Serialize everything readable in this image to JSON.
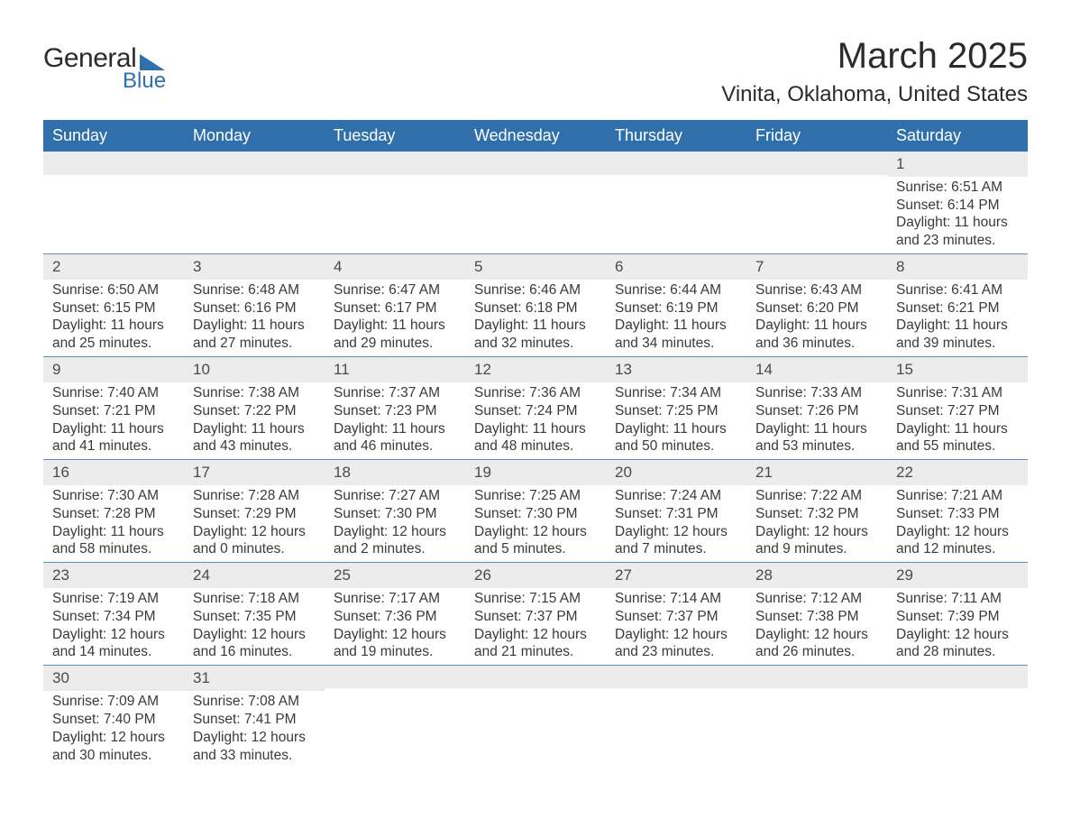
{
  "logo": {
    "text1": "General",
    "text2": "Blue"
  },
  "title": "March 2025",
  "location": "Vinita, Oklahoma, United States",
  "day_headers": [
    "Sunday",
    "Monday",
    "Tuesday",
    "Wednesday",
    "Thursday",
    "Friday",
    "Saturday"
  ],
  "colors": {
    "header_bg": "#2f6fab",
    "header_text": "#ffffff",
    "daynum_bg": "#ececec",
    "row_border": "#5b8fc4",
    "text": "#3a3a3a"
  },
  "weeks": [
    [
      {
        "n": "",
        "lines": []
      },
      {
        "n": "",
        "lines": []
      },
      {
        "n": "",
        "lines": []
      },
      {
        "n": "",
        "lines": []
      },
      {
        "n": "",
        "lines": []
      },
      {
        "n": "",
        "lines": []
      },
      {
        "n": "1",
        "lines": [
          "Sunrise: 6:51 AM",
          "Sunset: 6:14 PM",
          "Daylight: 11 hours and 23 minutes."
        ]
      }
    ],
    [
      {
        "n": "2",
        "lines": [
          "Sunrise: 6:50 AM",
          "Sunset: 6:15 PM",
          "Daylight: 11 hours and 25 minutes."
        ]
      },
      {
        "n": "3",
        "lines": [
          "Sunrise: 6:48 AM",
          "Sunset: 6:16 PM",
          "Daylight: 11 hours and 27 minutes."
        ]
      },
      {
        "n": "4",
        "lines": [
          "Sunrise: 6:47 AM",
          "Sunset: 6:17 PM",
          "Daylight: 11 hours and 29 minutes."
        ]
      },
      {
        "n": "5",
        "lines": [
          "Sunrise: 6:46 AM",
          "Sunset: 6:18 PM",
          "Daylight: 11 hours and 32 minutes."
        ]
      },
      {
        "n": "6",
        "lines": [
          "Sunrise: 6:44 AM",
          "Sunset: 6:19 PM",
          "Daylight: 11 hours and 34 minutes."
        ]
      },
      {
        "n": "7",
        "lines": [
          "Sunrise: 6:43 AM",
          "Sunset: 6:20 PM",
          "Daylight: 11 hours and 36 minutes."
        ]
      },
      {
        "n": "8",
        "lines": [
          "Sunrise: 6:41 AM",
          "Sunset: 6:21 PM",
          "Daylight: 11 hours and 39 minutes."
        ]
      }
    ],
    [
      {
        "n": "9",
        "lines": [
          "Sunrise: 7:40 AM",
          "Sunset: 7:21 PM",
          "Daylight: 11 hours and 41 minutes."
        ]
      },
      {
        "n": "10",
        "lines": [
          "Sunrise: 7:38 AM",
          "Sunset: 7:22 PM",
          "Daylight: 11 hours and 43 minutes."
        ]
      },
      {
        "n": "11",
        "lines": [
          "Sunrise: 7:37 AM",
          "Sunset: 7:23 PM",
          "Daylight: 11 hours and 46 minutes."
        ]
      },
      {
        "n": "12",
        "lines": [
          "Sunrise: 7:36 AM",
          "Sunset: 7:24 PM",
          "Daylight: 11 hours and 48 minutes."
        ]
      },
      {
        "n": "13",
        "lines": [
          "Sunrise: 7:34 AM",
          "Sunset: 7:25 PM",
          "Daylight: 11 hours and 50 minutes."
        ]
      },
      {
        "n": "14",
        "lines": [
          "Sunrise: 7:33 AM",
          "Sunset: 7:26 PM",
          "Daylight: 11 hours and 53 minutes."
        ]
      },
      {
        "n": "15",
        "lines": [
          "Sunrise: 7:31 AM",
          "Sunset: 7:27 PM",
          "Daylight: 11 hours and 55 minutes."
        ]
      }
    ],
    [
      {
        "n": "16",
        "lines": [
          "Sunrise: 7:30 AM",
          "Sunset: 7:28 PM",
          "Daylight: 11 hours and 58 minutes."
        ]
      },
      {
        "n": "17",
        "lines": [
          "Sunrise: 7:28 AM",
          "Sunset: 7:29 PM",
          "Daylight: 12 hours and 0 minutes."
        ]
      },
      {
        "n": "18",
        "lines": [
          "Sunrise: 7:27 AM",
          "Sunset: 7:30 PM",
          "Daylight: 12 hours and 2 minutes."
        ]
      },
      {
        "n": "19",
        "lines": [
          "Sunrise: 7:25 AM",
          "Sunset: 7:30 PM",
          "Daylight: 12 hours and 5 minutes."
        ]
      },
      {
        "n": "20",
        "lines": [
          "Sunrise: 7:24 AM",
          "Sunset: 7:31 PM",
          "Daylight: 12 hours and 7 minutes."
        ]
      },
      {
        "n": "21",
        "lines": [
          "Sunrise: 7:22 AM",
          "Sunset: 7:32 PM",
          "Daylight: 12 hours and 9 minutes."
        ]
      },
      {
        "n": "22",
        "lines": [
          "Sunrise: 7:21 AM",
          "Sunset: 7:33 PM",
          "Daylight: 12 hours and 12 minutes."
        ]
      }
    ],
    [
      {
        "n": "23",
        "lines": [
          "Sunrise: 7:19 AM",
          "Sunset: 7:34 PM",
          "Daylight: 12 hours and 14 minutes."
        ]
      },
      {
        "n": "24",
        "lines": [
          "Sunrise: 7:18 AM",
          "Sunset: 7:35 PM",
          "Daylight: 12 hours and 16 minutes."
        ]
      },
      {
        "n": "25",
        "lines": [
          "Sunrise: 7:17 AM",
          "Sunset: 7:36 PM",
          "Daylight: 12 hours and 19 minutes."
        ]
      },
      {
        "n": "26",
        "lines": [
          "Sunrise: 7:15 AM",
          "Sunset: 7:37 PM",
          "Daylight: 12 hours and 21 minutes."
        ]
      },
      {
        "n": "27",
        "lines": [
          "Sunrise: 7:14 AM",
          "Sunset: 7:37 PM",
          "Daylight: 12 hours and 23 minutes."
        ]
      },
      {
        "n": "28",
        "lines": [
          "Sunrise: 7:12 AM",
          "Sunset: 7:38 PM",
          "Daylight: 12 hours and 26 minutes."
        ]
      },
      {
        "n": "29",
        "lines": [
          "Sunrise: 7:11 AM",
          "Sunset: 7:39 PM",
          "Daylight: 12 hours and 28 minutes."
        ]
      }
    ],
    [
      {
        "n": "30",
        "lines": [
          "Sunrise: 7:09 AM",
          "Sunset: 7:40 PM",
          "Daylight: 12 hours and 30 minutes."
        ]
      },
      {
        "n": "31",
        "lines": [
          "Sunrise: 7:08 AM",
          "Sunset: 7:41 PM",
          "Daylight: 12 hours and 33 minutes."
        ]
      },
      {
        "n": "",
        "lines": []
      },
      {
        "n": "",
        "lines": []
      },
      {
        "n": "",
        "lines": []
      },
      {
        "n": "",
        "lines": []
      },
      {
        "n": "",
        "lines": []
      }
    ]
  ]
}
